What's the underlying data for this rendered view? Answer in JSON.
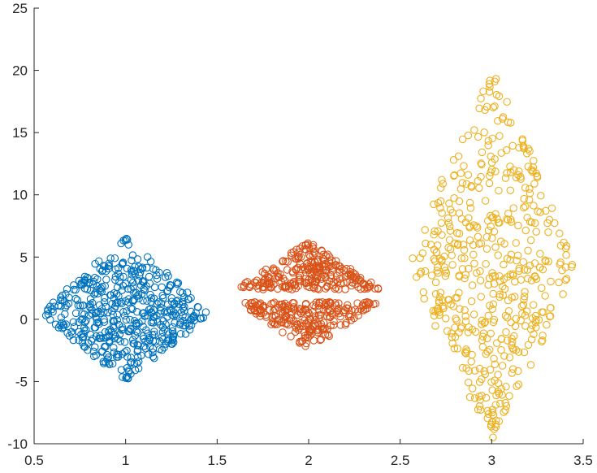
{
  "chart_data": {
    "type": "scatter",
    "title": "",
    "xlabel": "",
    "ylabel": "",
    "xlim": [
      0.5,
      3.5
    ],
    "ylim": [
      -10,
      25
    ],
    "x_ticks": [
      0.5,
      1,
      1.5,
      2,
      2.5,
      3,
      3.5
    ],
    "y_ticks": [
      -10,
      -5,
      0,
      5,
      10,
      15,
      20,
      25
    ],
    "x_tick_labels": [
      "0.5",
      "1",
      "1.5",
      "2",
      "2.5",
      "3",
      "3.5"
    ],
    "y_tick_labels": [
      "-10",
      "-5",
      "0",
      "5",
      "10",
      "15",
      "20",
      "25"
    ],
    "grid": false,
    "box": "left-bottom axes only",
    "marker": "open circle",
    "series": [
      {
        "color": "#0072BD",
        "distribution": "swarm around x=1, narrowing toward the y extremes",
        "x_center": 1,
        "x_halfwidth": 0.45,
        "y_range": [
          -4.8,
          6.5
        ],
        "y_center": 0.5,
        "count": 500,
        "gap_y": []
      },
      {
        "color": "#D95319",
        "distribution": "swarm around x=2 with a gap near y=1.8",
        "x_center": 2,
        "x_halfwidth": 0.42,
        "y_range": [
          -2.4,
          6.2
        ],
        "y_center": 2,
        "count": 500,
        "gap_y": [
          1.4,
          2.4
        ]
      },
      {
        "color": "#EDB120",
        "distribution": "swarm around x=3, widest near y=4",
        "x_center": 3,
        "x_halfwidth": 0.45,
        "y_range": [
          -9.5,
          20.3
        ],
        "y_center": 4,
        "count": 500,
        "gap_y": []
      }
    ]
  }
}
